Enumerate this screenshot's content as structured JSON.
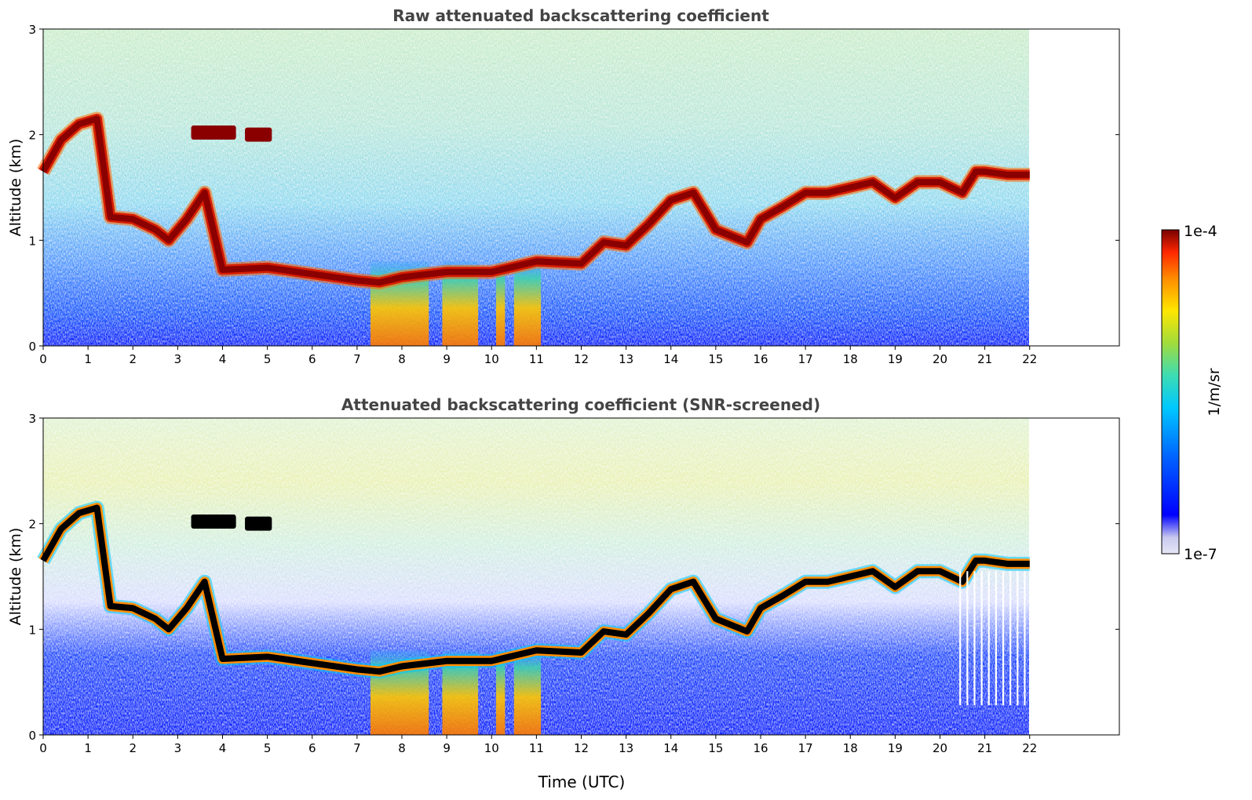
{
  "chart_data": [
    {
      "type": "heatmap",
      "title": "Raw attenuated backscattering coefficient",
      "xlabel": "",
      "ylabel": "Altitude (km)",
      "xlim": [
        0,
        24
      ],
      "ylim": [
        0,
        3
      ],
      "x_ticks": [
        "0",
        "1",
        "2",
        "3",
        "4",
        "5",
        "6",
        "7",
        "8",
        "9",
        "10",
        "11",
        "12",
        "13",
        "14",
        "15",
        "16",
        "17",
        "18",
        "19",
        "20",
        "21",
        "22"
      ],
      "y_ticks": [
        "0",
        "1",
        "2",
        "3"
      ],
      "data_extent_hours": [
        0,
        22
      ],
      "cloud_layer": {
        "time_utc": [
          0.0,
          0.4,
          0.8,
          1.2,
          1.5,
          2.0,
          2.5,
          2.8,
          3.2,
          3.6,
          4.0,
          5.0,
          6.0,
          7.0,
          7.5,
          8.0,
          9.0,
          10.0,
          11.0,
          12.0,
          12.5,
          13.0,
          13.5,
          14.0,
          14.5,
          15.0,
          15.7,
          16.0,
          16.5,
          17.0,
          17.5,
          18.0,
          18.5,
          19.0,
          19.5,
          20.0,
          20.5,
          20.8,
          21.0,
          21.5,
          22.0
        ],
        "altitude_km": [
          1.65,
          1.95,
          2.1,
          2.15,
          1.22,
          1.2,
          1.1,
          1.0,
          1.2,
          1.45,
          0.72,
          0.74,
          0.68,
          0.62,
          0.6,
          0.65,
          0.7,
          0.7,
          0.8,
          0.78,
          0.98,
          0.95,
          1.15,
          1.38,
          1.45,
          1.1,
          0.98,
          1.2,
          1.32,
          1.45,
          1.45,
          1.5,
          1.55,
          1.4,
          1.55,
          1.55,
          1.45,
          1.65,
          1.65,
          1.62,
          1.62
        ]
      },
      "elevated_layers": [
        {
          "start_utc": 3.3,
          "end_utc": 4.3,
          "altitude_km": 2.02
        },
        {
          "start_utc": 4.5,
          "end_utc": 5.1,
          "altitude_km": 2.0
        }
      ],
      "precipitation_periods_utc": [
        [
          7.3,
          8.6
        ],
        [
          8.9,
          9.7
        ],
        [
          10.1,
          10.3
        ],
        [
          10.5,
          11.1
        ]
      ]
    },
    {
      "type": "heatmap",
      "title": "Attenuated backscattering coefficient (SNR-screened)",
      "xlabel": "Time (UTC)",
      "ylabel": "Altitude (km)",
      "xlim": [
        0,
        24
      ],
      "ylim": [
        0,
        3
      ],
      "x_ticks": [
        "0",
        "1",
        "2",
        "3",
        "4",
        "5",
        "6",
        "7",
        "8",
        "9",
        "10",
        "11",
        "12",
        "13",
        "14",
        "15",
        "16",
        "17",
        "18",
        "19",
        "20",
        "21",
        "22"
      ],
      "y_ticks": [
        "0",
        "1",
        "2",
        "3"
      ],
      "data_extent_hours": [
        0,
        22
      ],
      "snr_screened": true
    }
  ],
  "colorbar": {
    "label": "1/m/sr",
    "max_label": "1e-4",
    "min_label": "1e-7",
    "min": 1e-07,
    "max": 0.0001,
    "scale": "log",
    "colormap": [
      "#e6e6f5",
      "#c8c8f0",
      "#0000ff",
      "#0064ff",
      "#00c8ff",
      "#3cdcb4",
      "#a0dc3c",
      "#ffe600",
      "#ff8c00",
      "#ff2800",
      "#b40000",
      "#780000"
    ]
  }
}
